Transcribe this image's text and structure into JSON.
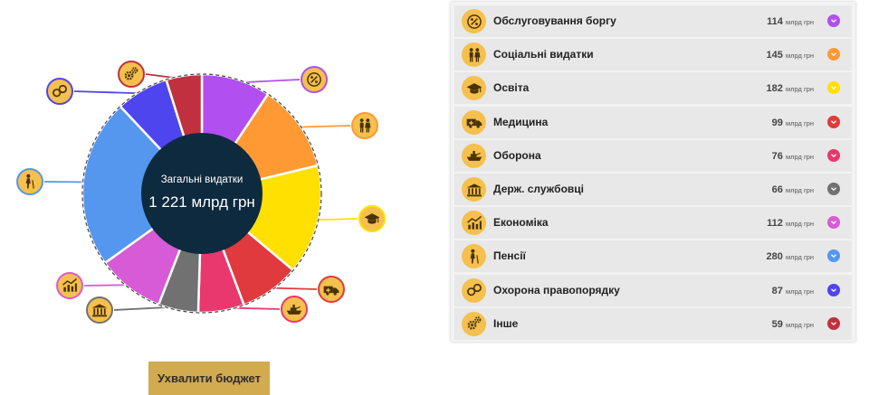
{
  "chart_data": {
    "type": "pie",
    "center_title": "Загальні видатки",
    "center_value": "1 221 млрд грн",
    "unit": "млрд грн",
    "slices": [
      {
        "label": "Обслуговування боргу",
        "value": 114,
        "color": "#b14ff0",
        "icon": "percent-icon"
      },
      {
        "label": "Соціальні видатки",
        "value": 145,
        "color": "#ff9933",
        "icon": "family-icon"
      },
      {
        "label": "Освіта",
        "value": 182,
        "color": "#ffe000",
        "icon": "graduation-cap-icon"
      },
      {
        "label": "Медицина",
        "value": 99,
        "color": "#e0393e",
        "icon": "ambulance-icon"
      },
      {
        "label": "Оборона",
        "value": 76,
        "color": "#e8386d",
        "icon": "warship-icon"
      },
      {
        "label": "Держ. службовці",
        "value": 66,
        "color": "#717171",
        "icon": "government-building-icon"
      },
      {
        "label": "Економіка",
        "value": 112,
        "color": "#d75bd6",
        "icon": "growth-chart-icon"
      },
      {
        "label": "Пенсії",
        "value": 280,
        "color": "#5596ef",
        "icon": "elderly-person-icon"
      },
      {
        "label": "Охорона правопорядку",
        "value": 87,
        "color": "#4f45ee",
        "icon": "handcuffs-icon"
      },
      {
        "label": "Інше",
        "value": 59,
        "color": "#c0303f",
        "icon": "gears-icon"
      }
    ]
  },
  "panel": {
    "rows": [
      {
        "label": "Обслуговування боргу",
        "amount": "114",
        "unit": "млрд грн",
        "color": "#b14ff0",
        "icon": "percent-icon"
      },
      {
        "label": "Соціальні видатки",
        "amount": "145",
        "unit": "млрд грн",
        "color": "#ff9933",
        "icon": "family-icon"
      },
      {
        "label": "Освіта",
        "amount": "182",
        "unit": "млрд грн",
        "color": "#ffe000",
        "icon": "graduation-cap-icon"
      },
      {
        "label": "Медицина",
        "amount": "99",
        "unit": "млрд грн",
        "color": "#e0393e",
        "icon": "ambulance-icon"
      },
      {
        "label": "Оборона",
        "amount": "76",
        "unit": "млрд грн",
        "color": "#e8386d",
        "icon": "warship-icon"
      },
      {
        "label": "Держ. службовці",
        "amount": "66",
        "unit": "млрд грн",
        "color": "#717171",
        "icon": "government-building-icon"
      },
      {
        "label": "Економіка",
        "amount": "112",
        "unit": "млрд грн",
        "color": "#d75bd6",
        "icon": "growth-chart-icon"
      },
      {
        "label": "Пенсії",
        "amount": "280",
        "unit": "млрд грн",
        "color": "#5596ef",
        "icon": "elderly-person-icon"
      },
      {
        "label": "Охорона правопорядку",
        "amount": "87",
        "unit": "млрд грн",
        "color": "#4f45ee",
        "icon": "handcuffs-icon"
      },
      {
        "label": "Інше",
        "amount": "59",
        "unit": "млрд грн",
        "color": "#c0303f",
        "icon": "gears-icon"
      }
    ]
  },
  "approve_button": {
    "label": "Ухвалити бюджет"
  },
  "colors": {
    "icon_bg": "#f5c04d",
    "center_bg": "#0e2a3e",
    "button_bg": "#d2aa4f",
    "panel_row_bg": "#e8e8e8"
  }
}
